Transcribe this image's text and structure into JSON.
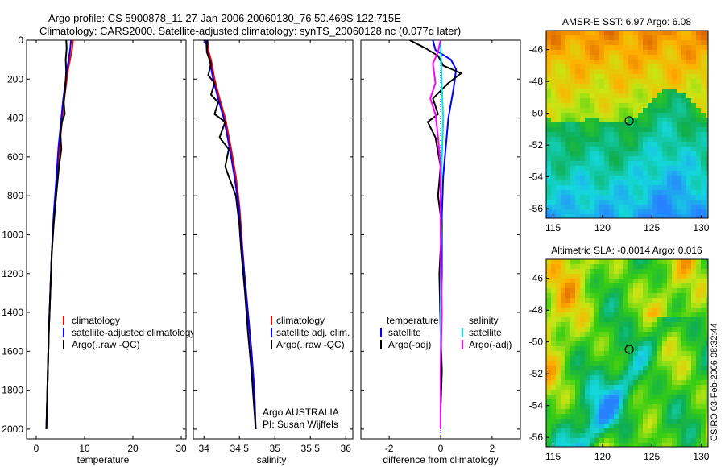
{
  "title": {
    "line1": "Argo profile: CS 5900878_11 27-Jan-2006 20060130_76 50.469S 122.715E",
    "line2": "Climatology: CARS2000. Satellite-adjusted climatology: synTS_20060128.nc (0.077d later)"
  },
  "credit": {
    "line1": "Argo AUSTRALIA",
    "line2": "PI: Susan Wijffels"
  },
  "timestamp": "CSIRO 03-Feb-2006 08:32:44",
  "colors": {
    "climatology": "#ff0000",
    "satellite": "#0000ff",
    "argo": "#000000",
    "sat_diff_salinity": "#00e5e5",
    "argo_diff_salinity": "#ff00ff",
    "zero_line": "#0000ff"
  },
  "chart_data": [
    {
      "type": "line",
      "xlabel": "temperature",
      "xlim": [
        -2,
        31
      ],
      "xticks": [
        0,
        10,
        20,
        30
      ],
      "ylim": [
        2050,
        0
      ],
      "yticks": [
        0,
        200,
        400,
        600,
        800,
        1000,
        1200,
        1400,
        1600,
        1800,
        2000
      ],
      "legend": [
        "climatology",
        "satellite-adjusted climatology",
        "Argo(..raw -QC)"
      ],
      "series": [
        {
          "name": "climatology",
          "color": "climatology",
          "x": [
            7.6,
            7.4,
            6.6,
            5.8,
            5.4,
            4.8,
            4.3,
            3.7,
            3.2,
            2.9,
            2.6,
            2.4,
            2.2,
            2.1
          ],
          "y": [
            0,
            50,
            150,
            300,
            400,
            550,
            700,
            900,
            1100,
            1300,
            1500,
            1700,
            1900,
            2000
          ]
        },
        {
          "name": "satellite-adjusted climatology",
          "color": "satellite",
          "x": [
            7.2,
            7.0,
            6.4,
            5.6,
            5.2,
            4.6,
            4.2,
            3.6,
            3.2,
            2.9,
            2.6,
            2.4,
            2.2,
            2.1
          ],
          "y": [
            0,
            50,
            150,
            300,
            400,
            550,
            700,
            900,
            1100,
            1300,
            1500,
            1700,
            1900,
            2000
          ]
        },
        {
          "name": "Argo(..raw -QC)",
          "color": "argo",
          "x": [
            6.2,
            6.3,
            6.1,
            6.2,
            6.0,
            5.7,
            5.9,
            5.3,
            5.0,
            5.2,
            4.7,
            4.2,
            3.6,
            3.2,
            2.9,
            2.6,
            2.4,
            2.2,
            2.1
          ],
          "y": [
            0,
            40,
            100,
            160,
            250,
            320,
            380,
            420,
            480,
            560,
            650,
            780,
            950,
            1100,
            1300,
            1500,
            1700,
            1900,
            2000
          ]
        }
      ]
    },
    {
      "type": "line",
      "xlabel": "salinity",
      "xlim": [
        33.85,
        36.1
      ],
      "xticks": [
        34,
        34.5,
        35,
        35.5,
        36
      ],
      "ylim": [
        2050,
        0
      ],
      "legend": [
        "climatology",
        "satellite adj. clim.",
        "Argo(..raw -QC)"
      ],
      "series": [
        {
          "name": "climatology",
          "color": "climatology",
          "x": [
            34.05,
            34.06,
            34.1,
            34.15,
            34.22,
            34.3,
            34.38,
            34.45,
            34.5,
            34.53,
            34.57,
            34.62,
            34.67,
            34.71,
            34.73
          ],
          "y": [
            0,
            50,
            100,
            200,
            300,
            400,
            550,
            700,
            850,
            1000,
            1200,
            1400,
            1600,
            1800,
            2000
          ]
        },
        {
          "name": "satellite adj. clim.",
          "color": "satellite",
          "x": [
            34.03,
            34.04,
            34.08,
            34.13,
            34.2,
            34.28,
            34.36,
            34.43,
            34.49,
            34.52,
            34.57,
            34.62,
            34.67,
            34.71,
            34.73
          ],
          "y": [
            0,
            50,
            100,
            200,
            300,
            400,
            550,
            700,
            850,
            1000,
            1200,
            1400,
            1600,
            1800,
            2000
          ]
        },
        {
          "name": "Argo(..raw -QC)",
          "color": "argo",
          "x": [
            34.05,
            34.04,
            34.1,
            34.06,
            34.15,
            34.1,
            34.2,
            34.15,
            34.3,
            34.22,
            34.35,
            34.3,
            34.45,
            34.5,
            34.53,
            34.58,
            34.62,
            34.67,
            34.71,
            34.73
          ],
          "y": [
            0,
            60,
            120,
            180,
            220,
            280,
            320,
            380,
            420,
            500,
            560,
            650,
            800,
            950,
            1100,
            1300,
            1500,
            1700,
            1900,
            2000
          ]
        }
      ]
    },
    {
      "type": "line",
      "xlabel": "difference from climatology",
      "xlim": [
        -3.1,
        3.1
      ],
      "xticks": [
        -2,
        0,
        2
      ],
      "ylim": [
        2050,
        0
      ],
      "legend_left": [
        "temperature",
        "satellite",
        "Argo(-adj)"
      ],
      "legend_right": [
        "salinity",
        "satellite",
        "Argo(-adj)"
      ],
      "series": [
        {
          "name": "temperature satellite",
          "color": "satellite",
          "x": [
            -0.3,
            -0.2,
            0.4,
            0.6,
            0.5,
            0.3,
            0.2,
            0.1,
            0.05,
            0.05,
            0.0,
            0.0,
            0.0
          ],
          "y": [
            0,
            50,
            100,
            150,
            250,
            400,
            550,
            700,
            900,
            1200,
            1500,
            1800,
            2000
          ]
        },
        {
          "name": "temperature Argo(-adj)",
          "color": "argo",
          "x": [
            -1.2,
            -0.6,
            -0.1,
            0.1,
            0.8,
            0.3,
            -0.3,
            -0.1,
            -0.5,
            -0.2,
            0.0,
            -0.1,
            0.05,
            -0.05,
            0.0,
            0.05,
            0.0,
            0.0
          ],
          "y": [
            0,
            40,
            80,
            130,
            170,
            220,
            300,
            380,
            420,
            500,
            650,
            800,
            950,
            1200,
            1500,
            1700,
            1900,
            2000
          ]
        },
        {
          "name": "salinity satellite",
          "color": "sat_diff_salinity",
          "x": [
            0.0,
            0.02,
            0.05,
            0.1,
            0.05,
            0.0,
            0.02,
            0.0,
            0.0,
            0.0
          ],
          "y": [
            0,
            100,
            250,
            400,
            600,
            800,
            1000,
            1300,
            1600,
            2000
          ]
        },
        {
          "name": "salinity Argo(-adj)",
          "color": "argo_diff_salinity",
          "x": [
            0.0,
            -0.1,
            -0.3,
            -0.2,
            -0.4,
            -0.2,
            -0.1,
            0.0,
            0.0,
            0.0,
            0.05,
            0.0,
            0.0
          ],
          "y": [
            0,
            60,
            120,
            220,
            300,
            380,
            500,
            650,
            800,
            1000,
            1400,
            1700,
            2000
          ]
        }
      ]
    },
    {
      "type": "heatmap",
      "title": "AMSR-E SST: 6.97 Argo: 6.08",
      "xticks": [
        115,
        120,
        125,
        130
      ],
      "yticks": [
        -46,
        -48,
        -50,
        -52,
        -54,
        -56
      ],
      "xlim": [
        114.3,
        130.7
      ],
      "ylim": [
        -56.6,
        -44.8
      ],
      "marker": {
        "lon": 122.715,
        "lat": -50.469
      }
    },
    {
      "type": "heatmap",
      "title": "Altimetric SLA: -0.0014 Argo: 0.016",
      "xticks": [
        115,
        120,
        125,
        130
      ],
      "yticks": [
        -46,
        -48,
        -50,
        -52,
        -54,
        -56
      ],
      "xlim": [
        114.3,
        130.7
      ],
      "ylim": [
        -56.6,
        -44.8
      ],
      "marker": {
        "lon": 122.715,
        "lat": -50.469
      }
    }
  ]
}
